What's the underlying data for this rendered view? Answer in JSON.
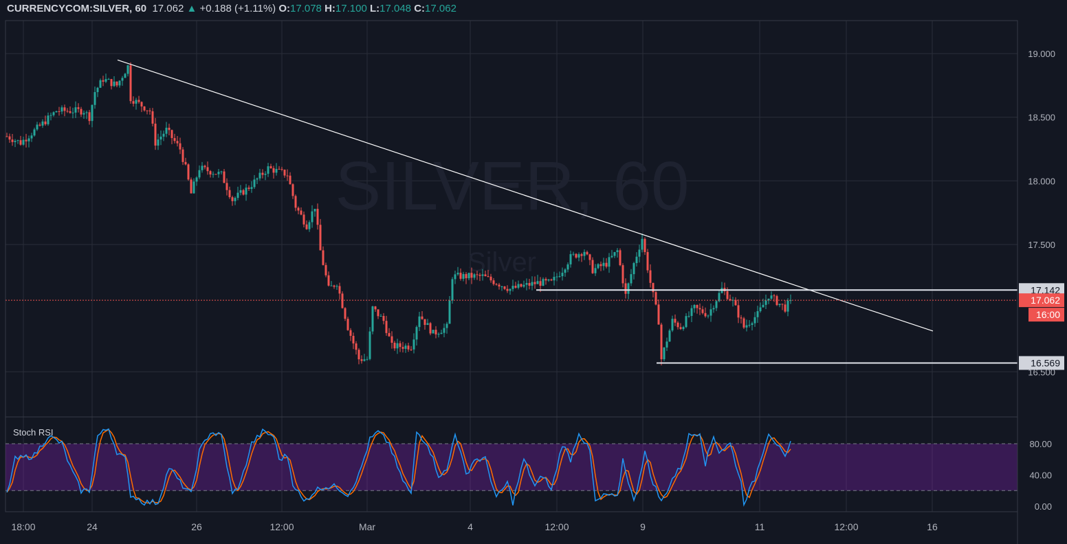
{
  "header": {
    "symbol": "CURRENCYCOM:SILVER, 60",
    "last": "17.062",
    "change": "+0.188 (+1.11%)",
    "o_label": "O:",
    "o": "17.078",
    "h_label": "H:",
    "h": "17.100",
    "l_label": "L:",
    "l": "17.048",
    "c_label": "C:",
    "c": "17.062"
  },
  "watermark": {
    "main": "SILVER, 60",
    "sub": "Silver"
  },
  "colors": {
    "up": "#26a69a",
    "down": "#ef5350",
    "bg": "#131722",
    "stoch_k": "#2196f3",
    "stoch_d": "#ff6d00",
    "band": "#7e1fb0"
  },
  "chart_data": [
    {
      "type": "candlestick",
      "title": "CURRENCYCOM:SILVER, 60",
      "price_ticks": [
        "19.000",
        "18.500",
        "18.000",
        "17.500",
        "16.500"
      ],
      "ylim": [
        16.0,
        19.3
      ],
      "x_ticks": [
        "18:00",
        "24",
        "26",
        "12:00",
        "Mar",
        "4",
        "12:00",
        "9",
        "11",
        "12:00",
        "16"
      ],
      "close_path": [
        [
          0,
          18.35
        ],
        [
          5,
          18.3
        ],
        [
          13,
          18.45
        ],
        [
          18,
          18.55
        ],
        [
          28,
          18.55
        ],
        [
          30,
          18.5
        ],
        [
          32,
          18.7
        ],
        [
          35,
          18.8
        ],
        [
          40,
          18.75
        ],
        [
          44,
          18.9
        ],
        [
          45,
          18.65
        ],
        [
          52,
          18.55
        ],
        [
          54,
          18.3
        ],
        [
          58,
          18.4
        ],
        [
          63,
          18.25
        ],
        [
          65,
          18.1
        ],
        [
          67,
          17.9
        ],
        [
          70,
          18.1
        ],
        [
          78,
          18.05
        ],
        [
          82,
          17.85
        ],
        [
          88,
          17.95
        ],
        [
          95,
          18.1
        ],
        [
          102,
          18.05
        ],
        [
          105,
          17.8
        ],
        [
          109,
          17.65
        ],
        [
          112,
          17.8
        ],
        [
          114,
          17.45
        ],
        [
          117,
          17.15
        ],
        [
          120,
          17.2
        ],
        [
          124,
          16.85
        ],
        [
          128,
          16.6
        ],
        [
          131,
          16.6
        ],
        [
          133,
          17.0
        ],
        [
          137,
          16.9
        ],
        [
          140,
          16.7
        ],
        [
          147,
          16.7
        ],
        [
          150,
          16.95
        ],
        [
          155,
          16.8
        ],
        [
          160,
          16.85
        ],
        [
          162,
          17.25
        ],
        [
          168,
          17.25
        ],
        [
          173,
          17.25
        ],
        [
          183,
          17.15
        ],
        [
          193,
          17.2
        ],
        [
          198,
          17.2
        ],
        [
          202,
          17.3
        ],
        [
          205,
          17.4
        ],
        [
          210,
          17.45
        ],
        [
          213,
          17.3
        ],
        [
          218,
          17.35
        ],
        [
          222,
          17.45
        ],
        [
          225,
          17.1
        ],
        [
          228,
          17.35
        ],
        [
          231,
          17.55
        ],
        [
          234,
          17.2
        ],
        [
          237,
          16.9
        ],
        [
          238,
          16.6
        ],
        [
          242,
          16.9
        ],
        [
          245,
          16.85
        ],
        [
          250,
          17.0
        ],
        [
          255,
          16.95
        ],
        [
          260,
          17.15
        ],
        [
          264,
          17.05
        ],
        [
          268,
          16.85
        ],
        [
          273,
          16.95
        ],
        [
          277,
          17.1
        ],
        [
          283,
          17.0
        ],
        [
          285,
          17.062
        ]
      ],
      "trendline": [
        [
          18.95
        ],
        [
          16.82
        ]
      ],
      "levels": [
        {
          "price": 17.142,
          "label": "17.142"
        },
        {
          "price": 16.569,
          "label": "16.569"
        }
      ],
      "last_price": {
        "label": "17.062",
        "countdown": "16:00",
        "value": 17.062
      }
    },
    {
      "type": "line",
      "title": "Stoch RSI",
      "y_ticks": [
        "80.00",
        "40.00",
        "0.00"
      ],
      "ylim": [
        0,
        100
      ],
      "bands": [
        20,
        80
      ],
      "k_path": [
        [
          0,
          15
        ],
        [
          3,
          60
        ],
        [
          10,
          65
        ],
        [
          15,
          90
        ],
        [
          20,
          80
        ],
        [
          23,
          50
        ],
        [
          27,
          20
        ],
        [
          30,
          20
        ],
        [
          33,
          90
        ],
        [
          37,
          100
        ],
        [
          40,
          70
        ],
        [
          43,
          60
        ],
        [
          45,
          15
        ],
        [
          50,
          5
        ],
        [
          55,
          5
        ],
        [
          59,
          50
        ],
        [
          63,
          30
        ],
        [
          67,
          15
        ],
        [
          70,
          70
        ],
        [
          74,
          95
        ],
        [
          78,
          90
        ],
        [
          82,
          15
        ],
        [
          85,
          30
        ],
        [
          89,
          80
        ],
        [
          93,
          95
        ],
        [
          97,
          90
        ],
        [
          99,
          60
        ],
        [
          102,
          65
        ],
        [
          104,
          30
        ],
        [
          108,
          5
        ],
        [
          112,
          20
        ],
        [
          115,
          25
        ],
        [
          120,
          25
        ],
        [
          124,
          15
        ],
        [
          128,
          40
        ],
        [
          132,
          85
        ],
        [
          135,
          95
        ],
        [
          139,
          80
        ],
        [
          143,
          40
        ],
        [
          147,
          15
        ],
        [
          149,
          95
        ],
        [
          153,
          80
        ],
        [
          157,
          40
        ],
        [
          160,
          45
        ],
        [
          163,
          95
        ],
        [
          167,
          40
        ],
        [
          170,
          60
        ],
        [
          174,
          60
        ],
        [
          178,
          10
        ],
        [
          182,
          30
        ],
        [
          184,
          5
        ],
        [
          188,
          60
        ],
        [
          192,
          25
        ],
        [
          195,
          40
        ],
        [
          198,
          20
        ],
        [
          202,
          80
        ],
        [
          205,
          60
        ],
        [
          208,
          95
        ],
        [
          212,
          70
        ],
        [
          214,
          5
        ],
        [
          218,
          15
        ],
        [
          222,
          10
        ],
        [
          224,
          60
        ],
        [
          228,
          5
        ],
        [
          232,
          70
        ],
        [
          234,
          40
        ],
        [
          238,
          5
        ],
        [
          242,
          35
        ],
        [
          245,
          50
        ],
        [
          248,
          90
        ],
        [
          252,
          95
        ],
        [
          254,
          55
        ],
        [
          257,
          90
        ],
        [
          259,
          70
        ],
        [
          263,
          80
        ],
        [
          267,
          30
        ],
        [
          268,
          5
        ],
        [
          272,
          35
        ],
        [
          274,
          60
        ],
        [
          277,
          95
        ],
        [
          280,
          80
        ],
        [
          283,
          60
        ],
        [
          285,
          80
        ]
      ]
    }
  ]
}
